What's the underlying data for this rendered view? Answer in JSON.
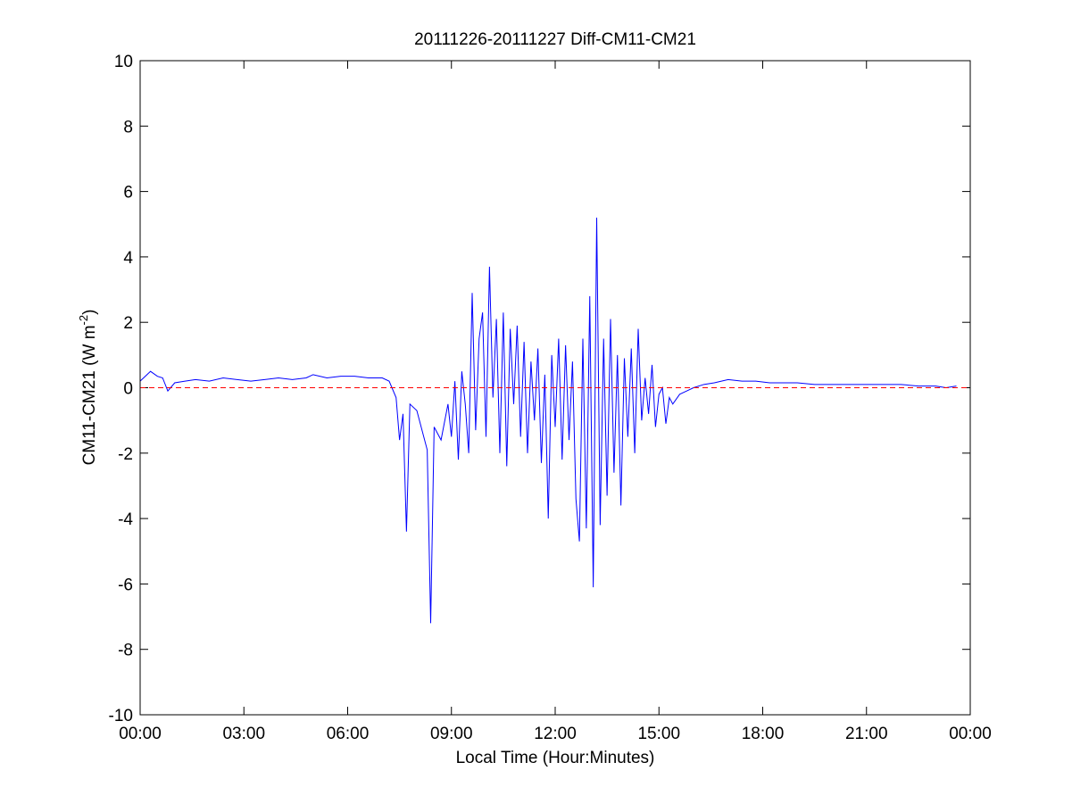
{
  "chart_data": {
    "type": "line",
    "title": "20111226-20111227 Diff-CM11-CM21",
    "xlabel": "Local Time (Hour:Minutes)",
    "ylabel": "CM11-CM21 (W m",
    "ylabel_sup": "-2",
    "ylabel_end": ")",
    "xlim": [
      0,
      24
    ],
    "xticks": [
      {
        "value": 0,
        "label": "00:00"
      },
      {
        "value": 3,
        "label": "03:00"
      },
      {
        "value": 6,
        "label": "06:00"
      },
      {
        "value": 9,
        "label": "09:00"
      },
      {
        "value": 12,
        "label": "12:00"
      },
      {
        "value": 15,
        "label": "15:00"
      },
      {
        "value": 18,
        "label": "18:00"
      },
      {
        "value": 21,
        "label": "21:00"
      },
      {
        "value": 24,
        "label": "00:00"
      }
    ],
    "ylim": [
      -10,
      10
    ],
    "yticks": [
      -10,
      -8,
      -6,
      -4,
      -2,
      0,
      2,
      4,
      6,
      8,
      10
    ],
    "reference_line": {
      "value": 0,
      "color": "#ff0000",
      "style": "dashed"
    },
    "series": [
      {
        "color": "#0000ff",
        "x": [
          0,
          0.15,
          0.3,
          0.5,
          0.65,
          0.8,
          1.0,
          1.3,
          1.6,
          2.0,
          2.4,
          2.8,
          3.2,
          3.6,
          4.0,
          4.4,
          4.8,
          5.0,
          5.4,
          5.8,
          6.2,
          6.6,
          7.0,
          7.2,
          7.4,
          7.5,
          7.6,
          7.7,
          7.8,
          8.0,
          8.2,
          8.3,
          8.4,
          8.5,
          8.7,
          8.9,
          9.0,
          9.1,
          9.2,
          9.3,
          9.4,
          9.5,
          9.6,
          9.7,
          9.8,
          9.9,
          10.0,
          10.1,
          10.2,
          10.3,
          10.4,
          10.5,
          10.6,
          10.7,
          10.8,
          10.9,
          11.0,
          11.1,
          11.2,
          11.3,
          11.4,
          11.5,
          11.6,
          11.7,
          11.8,
          11.9,
          12.0,
          12.1,
          12.2,
          12.3,
          12.4,
          12.5,
          12.6,
          12.7,
          12.8,
          12.9,
          13.0,
          13.1,
          13.2,
          13.3,
          13.4,
          13.5,
          13.6,
          13.7,
          13.8,
          13.9,
          14.0,
          14.1,
          14.2,
          14.3,
          14.4,
          14.5,
          14.6,
          14.7,
          14.8,
          14.9,
          15.0,
          15.1,
          15.2,
          15.3,
          15.4,
          15.6,
          15.8,
          16.0,
          16.3,
          16.6,
          17.0,
          17.4,
          17.8,
          18.2,
          18.6,
          19.0,
          19.5,
          20.0,
          20.5,
          21.0,
          21.5,
          22.0,
          22.5,
          23.0,
          23.3,
          23.6
        ],
        "values": [
          0.2,
          0.35,
          0.5,
          0.35,
          0.3,
          -0.1,
          0.15,
          0.2,
          0.25,
          0.2,
          0.3,
          0.25,
          0.2,
          0.25,
          0.3,
          0.25,
          0.3,
          0.4,
          0.3,
          0.35,
          0.35,
          0.3,
          0.3,
          0.2,
          -0.3,
          -1.6,
          -0.8,
          -4.4,
          -0.5,
          -0.7,
          -1.5,
          -1.9,
          -7.2,
          -1.2,
          -1.6,
          -0.5,
          -1.5,
          0.2,
          -2.2,
          0.5,
          -0.5,
          -2.0,
          2.9,
          -1.3,
          1.5,
          2.3,
          -1.5,
          3.7,
          -0.3,
          2.1,
          -2.0,
          2.3,
          -2.4,
          1.8,
          -0.5,
          1.9,
          -1.5,
          1.4,
          -2.0,
          0.8,
          -1.0,
          1.2,
          -2.3,
          0.4,
          -4.0,
          1.0,
          -1.2,
          1.5,
          -2.2,
          1.3,
          -1.6,
          0.8,
          -3.4,
          -4.7,
          1.5,
          -4.3,
          2.8,
          -6.1,
          5.2,
          -4.2,
          1.5,
          -3.3,
          2.1,
          -2.6,
          1.0,
          -3.6,
          0.9,
          -1.5,
          1.2,
          -2.0,
          1.8,
          -1.0,
          0.3,
          -0.8,
          0.7,
          -1.2,
          -0.2,
          0.0,
          -1.1,
          -0.3,
          -0.5,
          -0.2,
          -0.1,
          0.0,
          0.1,
          0.15,
          0.25,
          0.2,
          0.2,
          0.15,
          0.15,
          0.15,
          0.1,
          0.1,
          0.1,
          0.1,
          0.1,
          0.1,
          0.05,
          0.05,
          0.0,
          0.05
        ]
      }
    ]
  }
}
